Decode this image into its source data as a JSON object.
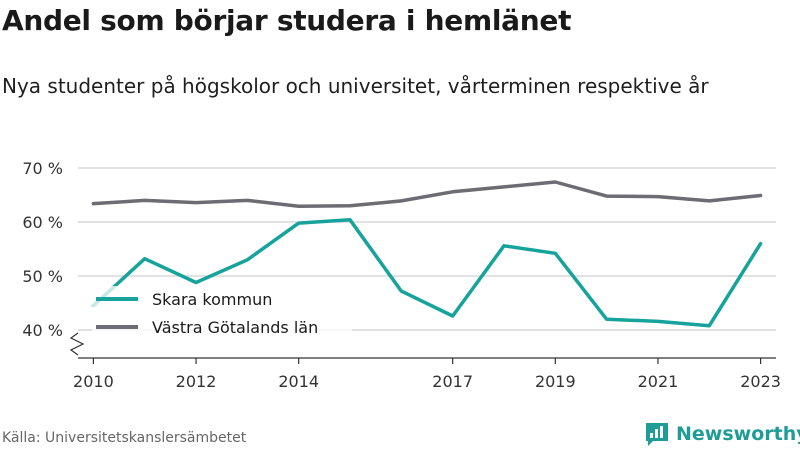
{
  "title": "Andel som börjar studera i hemlänet",
  "subtitle": "Nya studenter på högskolor och universitet, vårterminen respektive år",
  "source": "Källa: Universitetskanslersämbetet",
  "brand": "Newsworthy",
  "colors": {
    "skara": "#15a39b",
    "vgl": "#6d6b73",
    "grid": "#d9d9d9",
    "axis": "#333333",
    "brand": "#1f9c95"
  },
  "icons": {
    "brand": "newsworthy-logo-icon",
    "axis_break": "axis-break-icon"
  },
  "chart_data": {
    "type": "line",
    "x": [
      2010,
      2011,
      2012,
      2013,
      2014,
      2015,
      2016,
      2017,
      2018,
      2019,
      2020,
      2021,
      2022,
      2023
    ],
    "x_tick_values": [
      2010,
      2012,
      2014,
      2017,
      2019,
      2021,
      2023
    ],
    "x_tick_labels": [
      "2010",
      "2012",
      "2014",
      "2017",
      "2019",
      "2021",
      "2023"
    ],
    "y_ticks": [
      40,
      50,
      60,
      70
    ],
    "y_tick_labels": [
      "40 %",
      "50 %",
      "60 %",
      "70 %"
    ],
    "ylim": [
      35,
      70
    ],
    "xlim": [
      2009.7,
      2023.3
    ],
    "grid": true,
    "legend_position": "bottom-left",
    "series": [
      {
        "name": "Skara kommun",
        "color_key": "skara",
        "values": [
          44.5,
          53.2,
          48.8,
          53.0,
          59.8,
          60.4,
          47.2,
          42.6,
          55.6,
          54.2,
          42.0,
          41.6,
          40.8,
          56.0
        ]
      },
      {
        "name": "Västra Götalands län",
        "color_key": "vgl",
        "values": [
          63.4,
          64.0,
          63.6,
          64.0,
          62.9,
          63.0,
          63.9,
          65.6,
          66.5,
          67.4,
          64.8,
          64.7,
          63.9,
          64.9
        ]
      }
    ]
  }
}
